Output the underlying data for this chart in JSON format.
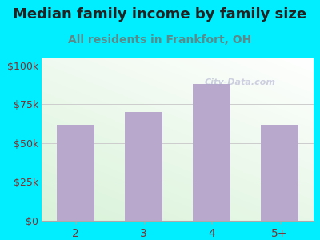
{
  "title": "Median family income by family size",
  "subtitle": "All residents in Frankfort, OH",
  "categories": [
    "2",
    "3",
    "4",
    "5+"
  ],
  "values": [
    62000,
    70000,
    88000,
    62000
  ],
  "bar_color": "#b8a8cc",
  "bg_color": "#00eeff",
  "yticks": [
    0,
    25000,
    50000,
    75000,
    100000
  ],
  "ytick_labels": [
    "$0",
    "$25k",
    "$50k",
    "$75k",
    "$100k"
  ],
  "ylim": [
    0,
    105000
  ],
  "title_fontsize": 13,
  "subtitle_fontsize": 10,
  "title_color": "#222222",
  "subtitle_color": "#5b8a8a",
  "tick_color": "#7a3333",
  "grid_color": "#cccccc",
  "watermark": "City-Data.com"
}
